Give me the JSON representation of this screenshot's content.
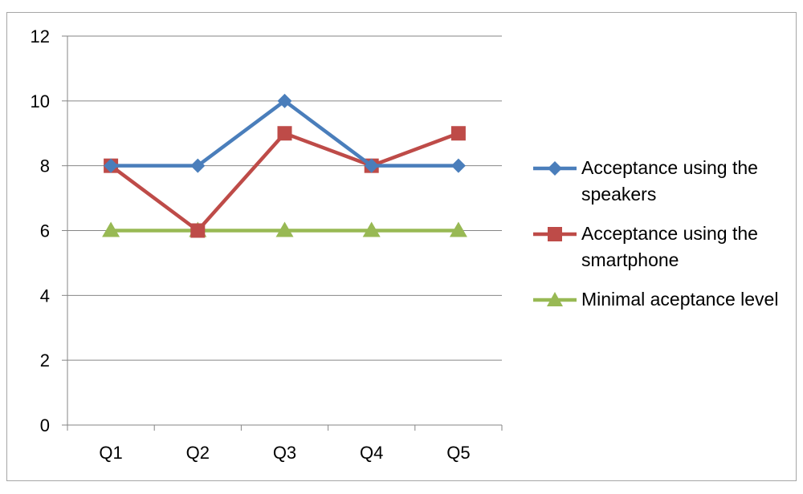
{
  "chart_data": {
    "type": "line",
    "categories": [
      "Q1",
      "Q2",
      "Q3",
      "Q4",
      "Q5"
    ],
    "series": [
      {
        "name": "Acceptance using the speakers",
        "values": [
          8,
          8,
          10,
          8,
          8
        ],
        "color": "#4a7ebb",
        "marker": "diamond"
      },
      {
        "name": "Acceptance using the smartphone",
        "values": [
          8,
          6,
          9,
          8,
          9
        ],
        "color": "#be4b48",
        "marker": "square"
      },
      {
        "name": "Minimal aceptance level",
        "values": [
          6,
          6,
          6,
          6,
          6
        ],
        "color": "#98b954",
        "marker": "triangle"
      }
    ],
    "ylim": [
      0,
      12
    ],
    "yticks": [
      "0",
      "2",
      "4",
      "6",
      "8",
      "10",
      "12"
    ],
    "grid": true,
    "legend_position": "right"
  }
}
